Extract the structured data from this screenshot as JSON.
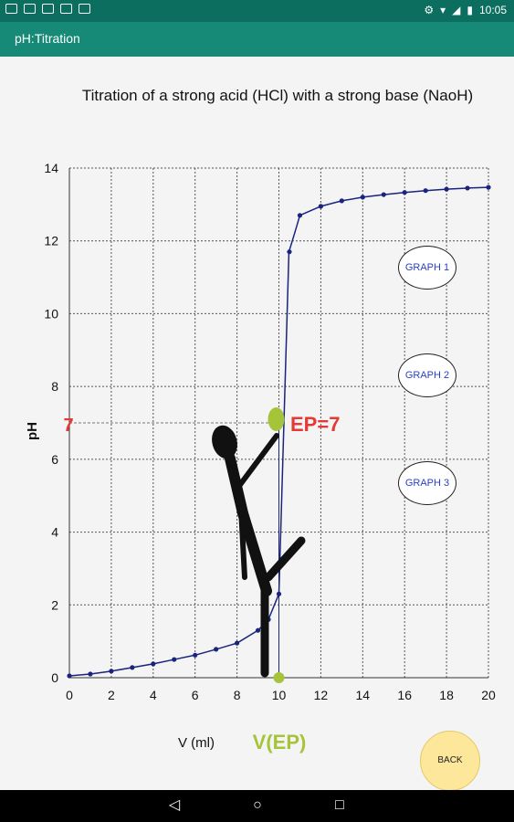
{
  "status_bar": {
    "time": "10:05"
  },
  "app_bar": {
    "title": "pH:Titration"
  },
  "graph_buttons": [
    "GRAPH 1",
    "GRAPH 2",
    "GRAPH 3"
  ],
  "back_label": "BACK",
  "annotations": {
    "ph_value": "7",
    "ep_label": "EP=7",
    "v_ep_label": "V(EP)"
  },
  "chart_data": {
    "type": "line",
    "title": "Titration of a strong acid (HCl) with a strong base (NaoH)",
    "xlabel": "V (ml)",
    "ylabel": "pH",
    "xlim": [
      0,
      20
    ],
    "ylim": [
      0,
      14
    ],
    "xticks": [
      0,
      2,
      4,
      6,
      8,
      10,
      12,
      14,
      16,
      18,
      20
    ],
    "yticks": [
      0,
      2,
      4,
      6,
      8,
      10,
      12,
      14
    ],
    "grid": true,
    "series": [
      {
        "x": [
          0,
          1,
          2,
          3,
          4,
          5,
          6,
          7,
          8,
          9,
          9.5,
          10,
          10.5,
          11,
          12,
          13,
          14,
          15,
          16,
          17,
          18,
          19,
          20
        ],
        "y": [
          0.05,
          0.1,
          0.18,
          0.28,
          0.38,
          0.5,
          0.62,
          0.78,
          0.95,
          1.3,
          1.6,
          2.3,
          11.7,
          12.7,
          12.95,
          13.1,
          13.2,
          13.27,
          13.33,
          13.38,
          13.42,
          13.45,
          13.47
        ],
        "color": "#1a237e"
      }
    ],
    "equivalence_point": {
      "x": 10,
      "y": 7
    }
  }
}
